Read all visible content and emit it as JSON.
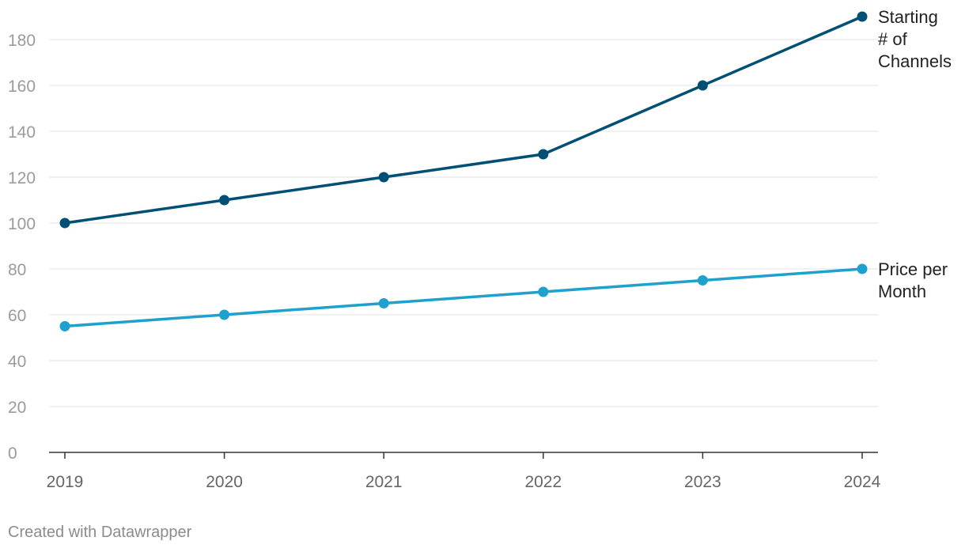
{
  "chart_data": {
    "type": "line",
    "title": "",
    "xlabel": "",
    "ylabel": "",
    "x": [
      "2019",
      "2020",
      "2021",
      "2022",
      "2023",
      "2024"
    ],
    "ylim": [
      0,
      190
    ],
    "yticks": [
      0,
      20,
      40,
      60,
      80,
      100,
      120,
      140,
      160,
      180
    ],
    "grid": true,
    "legend": "direct labels at right end of lines",
    "series": [
      {
        "name": "Starting # of Channels",
        "label_lines": [
          "Starting",
          "# of",
          "Channels"
        ],
        "values": [
          100,
          110,
          120,
          130,
          160,
          190
        ],
        "color": "#004f74"
      },
      {
        "name": "Price per Month",
        "label_lines": [
          "Price per",
          "Month"
        ],
        "values": [
          55,
          60,
          65,
          70,
          75,
          80
        ],
        "color": "#1ea1cc"
      }
    ]
  },
  "footer": {
    "credit": "Created with Datawrapper"
  },
  "colors": {
    "grid": "#e3e3e3",
    "axis": "#333333",
    "tick_label": "#9b9b9b",
    "series_label": "#222222"
  }
}
